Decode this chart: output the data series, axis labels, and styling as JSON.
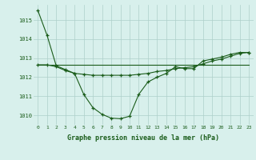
{
  "hours": [
    0,
    1,
    2,
    3,
    4,
    5,
    6,
    7,
    8,
    9,
    10,
    11,
    12,
    13,
    14,
    15,
    16,
    17,
    18,
    19,
    20,
    21,
    22,
    23
  ],
  "line1": [
    1015.5,
    1014.2,
    1012.6,
    1012.4,
    1012.2,
    1011.1,
    1010.4,
    1010.05,
    1009.85,
    1009.82,
    1009.95,
    1011.1,
    1011.75,
    1012.0,
    1012.2,
    1012.55,
    1012.45,
    1012.45,
    1012.85,
    1012.95,
    1013.05,
    1013.2,
    1013.3,
    1013.3
  ],
  "line2": [
    1012.65,
    1012.65,
    1012.65,
    1012.65,
    1012.65,
    1012.65,
    1012.65,
    1012.65,
    1012.65,
    1012.65,
    1012.65,
    1012.65,
    1012.65,
    1012.65,
    1012.65,
    1012.65,
    1012.65,
    1012.65,
    1012.65,
    1012.65,
    1012.65,
    1012.65,
    1012.65,
    1012.65
  ],
  "line3": [
    1012.65,
    1012.65,
    1012.55,
    1012.35,
    1012.2,
    1012.15,
    1012.1,
    1012.1,
    1012.1,
    1012.1,
    1012.1,
    1012.15,
    1012.2,
    1012.3,
    1012.35,
    1012.45,
    1012.5,
    1012.55,
    1012.7,
    1012.85,
    1012.95,
    1013.1,
    1013.25,
    1013.3
  ],
  "line_color": "#1a5c1a",
  "bg_color": "#d8f0ec",
  "grid_color": "#aed0ca",
  "ylabel_values": [
    1010,
    1011,
    1012,
    1013,
    1014,
    1015
  ],
  "xlabel": "Graphe pression niveau de la mer (hPa)",
  "ylim": [
    1009.5,
    1015.8
  ],
  "xlim": [
    -0.5,
    23.5
  ]
}
